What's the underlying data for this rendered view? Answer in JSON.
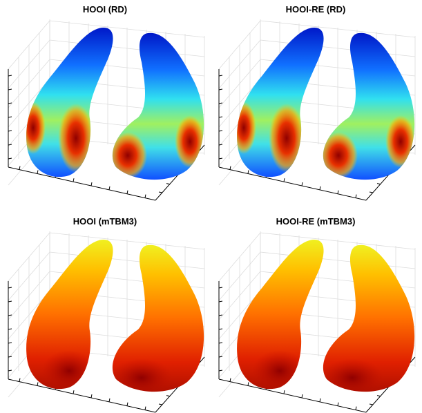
{
  "panels": [
    {
      "title": "HOOI (RD)",
      "colormap": "rd"
    },
    {
      "title": "HOOI-RE (RD)",
      "colormap": "rd"
    },
    {
      "title": "HOOI (mTBM3)",
      "colormap": "mtbm"
    },
    {
      "title": "HOOI-RE (mTBM3)",
      "colormap": "mtbm"
    }
  ]
}
